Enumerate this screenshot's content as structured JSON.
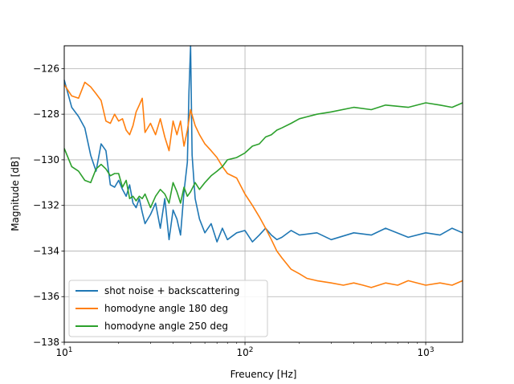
{
  "chart_data": {
    "type": "line",
    "xlabel": "Freuency [Hz]",
    "ylabel": "Magnitude [dB]",
    "x_scale": "log",
    "xlim": [
      10,
      1600
    ],
    "ylim": [
      -138,
      -125
    ],
    "grid": true,
    "legend_placement": "lower-left",
    "y_ticks": [
      -126,
      -128,
      -130,
      -132,
      -134,
      -136,
      -138
    ],
    "y_tick_labels": [
      "−126",
      "−128",
      "−130",
      "−132",
      "−134",
      "−136",
      "−138"
    ],
    "x_ticks": [
      {
        "base": "10",
        "exp": "1",
        "value": 10
      },
      {
        "base": "10",
        "exp": "2",
        "value": 100
      },
      {
        "base": "10",
        "exp": "3",
        "value": 1000
      }
    ],
    "series": [
      {
        "name": "shot noise + backscattering",
        "color": "#1f77b4",
        "x": [
          10,
          11,
          12,
          13,
          14,
          15,
          16,
          17,
          18,
          19,
          20,
          21,
          22,
          23,
          24,
          25,
          26,
          27,
          28,
          30,
          32,
          34,
          36,
          38,
          40,
          42,
          44,
          46,
          48,
          49,
          50,
          51,
          53,
          56,
          60,
          65,
          70,
          75,
          80,
          90,
          100,
          110,
          120,
          130,
          140,
          150,
          160,
          180,
          200,
          250,
          300,
          400,
          500,
          600,
          800,
          1000,
          1200,
          1400,
          1600
        ],
        "y": [
          -126.5,
          -127.7,
          -128.1,
          -128.6,
          -129.8,
          -130.5,
          -129.3,
          -129.6,
          -131.1,
          -131.2,
          -130.9,
          -131.3,
          -131.6,
          -131.1,
          -131.9,
          -132.1,
          -131.7,
          -132.3,
          -132.8,
          -132.4,
          -131.9,
          -133.0,
          -131.7,
          -133.5,
          -132.2,
          -132.6,
          -133.3,
          -131.4,
          -130.1,
          -127.0,
          -125.0,
          -129.8,
          -131.7,
          -132.6,
          -133.2,
          -132.8,
          -133.6,
          -133.0,
          -133.5,
          -133.2,
          -133.1,
          -133.6,
          -133.3,
          -133.0,
          -133.3,
          -133.5,
          -133.4,
          -133.1,
          -133.3,
          -133.2,
          -133.5,
          -133.2,
          -133.3,
          -133.0,
          -133.4,
          -133.2,
          -133.3,
          -133.0,
          -133.2
        ]
      },
      {
        "name": "homodyne angle 180 deg",
        "color": "#ff7f0e",
        "x": [
          10,
          11,
          12,
          13,
          14,
          15,
          16,
          17,
          18,
          19,
          20,
          21,
          22,
          23,
          24,
          25,
          26,
          27,
          28,
          30,
          32,
          34,
          36,
          38,
          40,
          42,
          44,
          46,
          48,
          50,
          53,
          56,
          60,
          65,
          70,
          75,
          80,
          90,
          100,
          110,
          120,
          130,
          140,
          150,
          160,
          180,
          200,
          220,
          250,
          300,
          350,
          400,
          450,
          500,
          600,
          700,
          800,
          1000,
          1200,
          1400,
          1600
        ],
        "y": [
          -126.7,
          -127.2,
          -127.3,
          -126.6,
          -126.8,
          -127.1,
          -127.4,
          -128.3,
          -128.4,
          -128.0,
          -128.3,
          -128.2,
          -128.7,
          -128.9,
          -128.5,
          -127.9,
          -127.6,
          -127.3,
          -128.8,
          -128.4,
          -128.9,
          -128.2,
          -129.0,
          -129.6,
          -128.3,
          -128.9,
          -128.3,
          -129.4,
          -128.7,
          -127.8,
          -128.5,
          -128.9,
          -129.3,
          -129.6,
          -129.9,
          -130.3,
          -130.6,
          -130.8,
          -131.5,
          -132.0,
          -132.5,
          -133.0,
          -133.5,
          -134.0,
          -134.3,
          -134.8,
          -135.0,
          -135.2,
          -135.3,
          -135.4,
          -135.5,
          -135.4,
          -135.5,
          -135.6,
          -135.4,
          -135.5,
          -135.3,
          -135.5,
          -135.4,
          -135.5,
          -135.3
        ]
      },
      {
        "name": "homodyne angle 250 deg",
        "color": "#2ca02c",
        "x": [
          10,
          11,
          12,
          13,
          14,
          15,
          16,
          17,
          18,
          19,
          20,
          21,
          22,
          23,
          24,
          25,
          26,
          27,
          28,
          30,
          32,
          34,
          36,
          38,
          40,
          42,
          44,
          46,
          48,
          50,
          53,
          56,
          60,
          65,
          70,
          75,
          80,
          90,
          100,
          110,
          120,
          130,
          140,
          150,
          160,
          180,
          200,
          250,
          300,
          400,
          500,
          600,
          800,
          1000,
          1200,
          1400,
          1600
        ],
        "y": [
          -129.5,
          -130.3,
          -130.5,
          -130.9,
          -131.0,
          -130.4,
          -130.2,
          -130.4,
          -130.7,
          -130.6,
          -130.6,
          -131.2,
          -130.9,
          -131.7,
          -131.6,
          -131.8,
          -131.6,
          -131.7,
          -131.5,
          -132.1,
          -131.6,
          -131.3,
          -131.5,
          -131.9,
          -131.0,
          -131.4,
          -131.9,
          -131.2,
          -131.6,
          -131.4,
          -131.0,
          -131.3,
          -131.0,
          -130.7,
          -130.5,
          -130.3,
          -130.0,
          -129.9,
          -129.7,
          -129.4,
          -129.3,
          -129.0,
          -128.9,
          -128.7,
          -128.6,
          -128.4,
          -128.2,
          -128.0,
          -127.9,
          -127.7,
          -127.8,
          -127.6,
          -127.7,
          -127.5,
          -127.6,
          -127.7,
          -127.5
        ]
      }
    ]
  }
}
